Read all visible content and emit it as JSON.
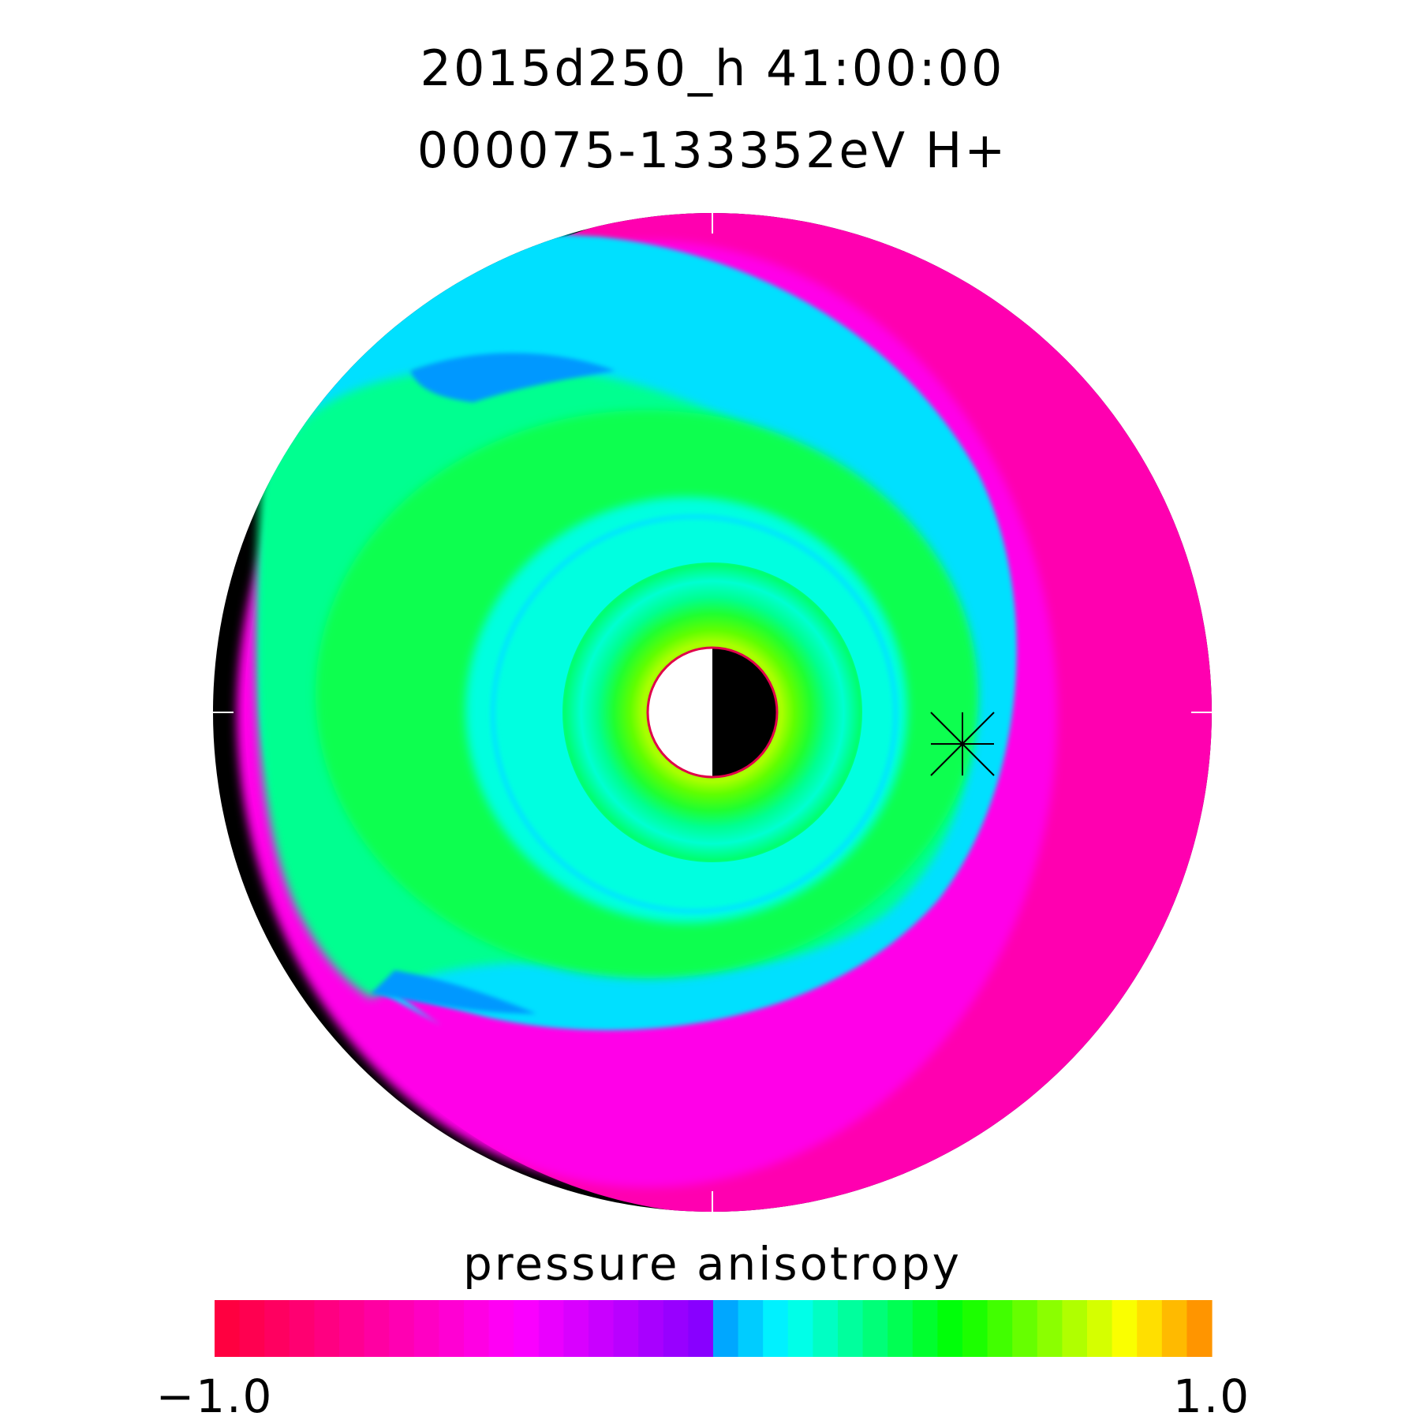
{
  "chart_data": {
    "type": "heatmap",
    "projection": "polar equatorial plane",
    "title_line1": "2015d250_h  41:00:00",
    "title_line2": "000075-133352eV H+",
    "colorbar": {
      "label": "pressure anisotropy",
      "min": -1.0,
      "max": 1.0,
      "min_label": "−1.0",
      "max_label": "1.0"
    },
    "colors": {
      "outside": "#000000",
      "background": "#ffffff",
      "earth_day": "#ffffff",
      "earth_night": "#000000",
      "earth_outline": "#e0004a",
      "marker": "#000000"
    },
    "marker": "asterisk",
    "field_description_values": {
      "outer_ring": -0.55,
      "inner_ring_core": 0.4,
      "near_earth": 0.7
    }
  }
}
